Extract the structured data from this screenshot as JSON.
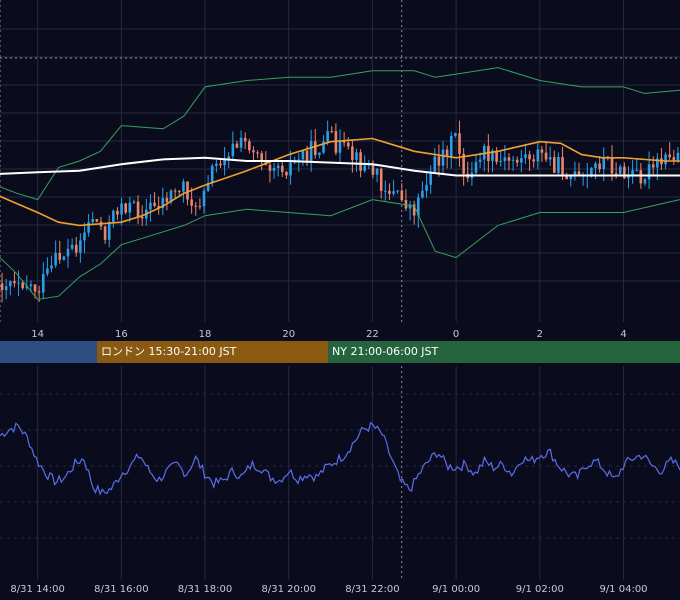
{
  "chart_data": [
    {
      "type": "candlestick",
      "title": "",
      "x_ticks": [
        {
          "label": "14",
          "hour": 14
        },
        {
          "label": "16",
          "hour": 16
        },
        {
          "label": "18",
          "hour": 18
        },
        {
          "label": "20",
          "hour": 20
        },
        {
          "label": "22",
          "hour": 22
        },
        {
          "label": "0",
          "hour": 24
        },
        {
          "label": "2",
          "hour": 26
        },
        {
          "label": "4",
          "hour": 28
        }
      ],
      "x_range_hours": [
        13.1,
        29.35
      ],
      "dotted_vlines_hours": [
        13.1,
        22.7
      ],
      "overlays": [
        {
          "name": "",
          "color": "#ffffff",
          "points": [
            [
              13.1,
              0.54
            ],
            [
              14,
              0.535
            ],
            [
              15,
              0.53
            ],
            [
              16,
              0.51
            ],
            [
              17,
              0.495
            ],
            [
              18,
              0.49
            ],
            [
              19,
              0.5
            ],
            [
              20,
              0.5
            ],
            [
              21,
              0.505
            ],
            [
              22,
              0.51
            ],
            [
              23,
              0.53
            ],
            [
              24,
              0.545
            ],
            [
              25,
              0.545
            ],
            [
              26,
              0.545
            ],
            [
              27,
              0.545
            ],
            [
              28,
              0.545
            ],
            [
              29.35,
              0.545
            ]
          ]
        },
        {
          "name": "",
          "color": "#f0a030",
          "points": [
            [
              13.1,
              0.61
            ],
            [
              14,
              0.66
            ],
            [
              14.5,
              0.69
            ],
            [
              15,
              0.7
            ],
            [
              16,
              0.69
            ],
            [
              16.5,
              0.67
            ],
            [
              17,
              0.64
            ],
            [
              17.5,
              0.6
            ],
            [
              18,
              0.575
            ],
            [
              19,
              0.53
            ],
            [
              20,
              0.48
            ],
            [
              21,
              0.44
            ],
            [
              22,
              0.43
            ],
            [
              23,
              0.47
            ],
            [
              24,
              0.49
            ],
            [
              25,
              0.47
            ],
            [
              26,
              0.44
            ],
            [
              26.5,
              0.445
            ],
            [
              27,
              0.48
            ],
            [
              27.5,
              0.49
            ],
            [
              28,
              0.49
            ],
            [
              29,
              0.5
            ],
            [
              29.35,
              0.5
            ]
          ]
        },
        {
          "name": "",
          "color": "#3aa05a",
          "points": [
            [
              13.1,
              0.58
            ],
            [
              13.5,
              0.6
            ],
            [
              14,
              0.62
            ],
            [
              14.5,
              0.52
            ],
            [
              15,
              0.5
            ],
            [
              15.5,
              0.47
            ],
            [
              16,
              0.39
            ],
            [
              17,
              0.4
            ],
            [
              17.5,
              0.36
            ],
            [
              18,
              0.27
            ],
            [
              19,
              0.25
            ],
            [
              20,
              0.24
            ],
            [
              21,
              0.24
            ],
            [
              22,
              0.22
            ],
            [
              23,
              0.22
            ],
            [
              23.5,
              0.24
            ],
            [
              24,
              0.23
            ],
            [
              25,
              0.21
            ],
            [
              26,
              0.25
            ],
            [
              27,
              0.27
            ],
            [
              28,
              0.27
            ],
            [
              28.5,
              0.29
            ],
            [
              29.35,
              0.28
            ]
          ]
        },
        {
          "name": "",
          "color": "#3aa05a",
          "points": [
            [
              13.1,
              0.8
            ],
            [
              13.5,
              0.85
            ],
            [
              14,
              0.93
            ],
            [
              14.5,
              0.92
            ],
            [
              15,
              0.86
            ],
            [
              15.5,
              0.82
            ],
            [
              16,
              0.76
            ],
            [
              17,
              0.72
            ],
            [
              17.5,
              0.7
            ],
            [
              18,
              0.67
            ],
            [
              19,
              0.65
            ],
            [
              20,
              0.66
            ],
            [
              21,
              0.67
            ],
            [
              22,
              0.62
            ],
            [
              23,
              0.64
            ],
            [
              23.5,
              0.78
            ],
            [
              24,
              0.8
            ],
            [
              25,
              0.7
            ],
            [
              26,
              0.66
            ],
            [
              27,
              0.66
            ],
            [
              28,
              0.66
            ],
            [
              29,
              0.63
            ],
            [
              29.35,
              0.62
            ]
          ]
        }
      ],
      "candle_path": [
        [
          13.1,
          0.88
        ],
        [
          13.5,
          0.86
        ],
        [
          14,
          0.9
        ],
        [
          14.5,
          0.8
        ],
        [
          15,
          0.75
        ],
        [
          15.3,
          0.67
        ],
        [
          15.6,
          0.72
        ],
        [
          16,
          0.63
        ],
        [
          16.5,
          0.66
        ],
        [
          17,
          0.62
        ],
        [
          17.5,
          0.57
        ],
        [
          17.8,
          0.67
        ],
        [
          18,
          0.56
        ],
        [
          18.5,
          0.47
        ],
        [
          19,
          0.44
        ],
        [
          19.5,
          0.5
        ],
        [
          20,
          0.52
        ],
        [
          20.3,
          0.48
        ],
        [
          20.7,
          0.46
        ],
        [
          21,
          0.43
        ],
        [
          21.5,
          0.49
        ],
        [
          22,
          0.53
        ],
        [
          22.3,
          0.58
        ],
        [
          22.7,
          0.62
        ],
        [
          23,
          0.65
        ],
        [
          23.3,
          0.55
        ],
        [
          23.7,
          0.47
        ],
        [
          24,
          0.43
        ],
        [
          24.3,
          0.58
        ],
        [
          24.6,
          0.47
        ],
        [
          25,
          0.51
        ],
        [
          25.5,
          0.49
        ],
        [
          26,
          0.48
        ],
        [
          26.5,
          0.52
        ],
        [
          27,
          0.57
        ],
        [
          27.5,
          0.49
        ],
        [
          28,
          0.55
        ],
        [
          28.5,
          0.54
        ],
        [
          29,
          0.5
        ],
        [
          29.35,
          0.48
        ]
      ]
    },
    {
      "type": "line",
      "title": "",
      "series": [
        {
          "name": "",
          "color": "#5a6ee8",
          "values": [
            0.74,
            0.78,
            0.8,
            0.72,
            0.58,
            0.5,
            0.45,
            0.48,
            0.56,
            0.6,
            0.42,
            0.38,
            0.41,
            0.5,
            0.55,
            0.62,
            0.52,
            0.46,
            0.52,
            0.56,
            0.5,
            0.6,
            0.5,
            0.44,
            0.46,
            0.52,
            0.48,
            0.56,
            0.54,
            0.48,
            0.46,
            0.52,
            0.47,
            0.5,
            0.48,
            0.54,
            0.58,
            0.62,
            0.7,
            0.78,
            0.8,
            0.75,
            0.6,
            0.45,
            0.4,
            0.5,
            0.58,
            0.64,
            0.55,
            0.54,
            0.56,
            0.5,
            0.58,
            0.54,
            0.56,
            0.5,
            0.6,
            0.58,
            0.62,
            0.64,
            0.55,
            0.5,
            0.48,
            0.56,
            0.58,
            0.52,
            0.46,
            0.56,
            0.6,
            0.62,
            0.55,
            0.52,
            0.58,
            0.55
          ]
        }
      ],
      "y_range": [
        0,
        1
      ]
    }
  ],
  "sessions": [
    {
      "label": "",
      "color": "#2e4e80"
    },
    {
      "label": "ロンドン 15:30-21:00 JST",
      "color": "#8a5a12"
    },
    {
      "label": "NY 21:00-06:00 JST",
      "color": "#26643e"
    }
  ],
  "date_axis": [
    {
      "label": "8/31 14:00",
      "hour": 14
    },
    {
      "label": "8/31 16:00",
      "hour": 16
    },
    {
      "label": "8/31 18:00",
      "hour": 18
    },
    {
      "label": "8/31 20:00",
      "hour": 20
    },
    {
      "label": "8/31 22:00",
      "hour": 22
    },
    {
      "label": "9/1 00:00",
      "hour": 24
    },
    {
      "label": "9/1 02:00",
      "hour": 26
    },
    {
      "label": "9/1 04:00",
      "hour": 28
    }
  ],
  "colors": {
    "background": "#0a0c1e",
    "grid": "#262a40",
    "up_candle": "#2a9fe8",
    "down_candle": "#e8866a"
  }
}
